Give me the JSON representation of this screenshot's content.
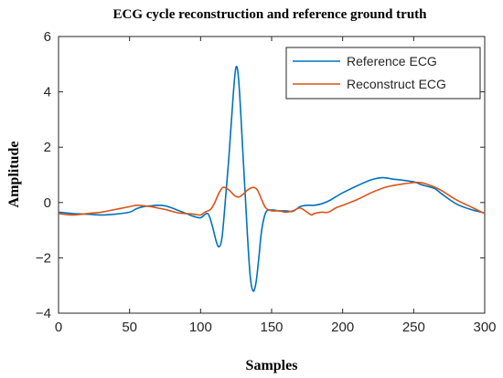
{
  "chart_data": {
    "type": "line",
    "title": "ECG cycle reconstruction and reference ground truth",
    "xlabel": "Samples",
    "ylabel": "Amplitude",
    "xlim": [
      0,
      300
    ],
    "ylim": [
      -4,
      6
    ],
    "xticks": [
      0,
      50,
      100,
      150,
      200,
      250,
      300
    ],
    "yticks": [
      -4,
      -2,
      0,
      2,
      4,
      6
    ],
    "grid": false,
    "legend_position": "top-right",
    "series": [
      {
        "name": "Reference ECG",
        "color": "#0072BD",
        "x": [
          0,
          10,
          20,
          30,
          40,
          50,
          55,
          60,
          65,
          70,
          75,
          80,
          85,
          90,
          95,
          100,
          105,
          108,
          111,
          113,
          115,
          117,
          120,
          123,
          125,
          127,
          130,
          133,
          135,
          137,
          139,
          141,
          143,
          146,
          150,
          155,
          160,
          165,
          170,
          175,
          180,
          185,
          190,
          195,
          200,
          210,
          220,
          228,
          235,
          240,
          250,
          255,
          260,
          265,
          270,
          280,
          290,
          300
        ],
        "y": [
          -0.35,
          -0.4,
          -0.42,
          -0.45,
          -0.42,
          -0.35,
          -0.22,
          -0.15,
          -0.12,
          -0.1,
          -0.12,
          -0.2,
          -0.3,
          -0.4,
          -0.5,
          -0.55,
          -0.4,
          -0.8,
          -1.4,
          -1.6,
          -1.3,
          -0.2,
          1.7,
          3.9,
          4.9,
          4.3,
          1.6,
          -1.2,
          -2.7,
          -3.2,
          -2.9,
          -2.0,
          -1.0,
          -0.35,
          -0.27,
          -0.3,
          -0.3,
          -0.32,
          -0.15,
          -0.1,
          -0.1,
          -0.05,
          0.05,
          0.2,
          0.35,
          0.6,
          0.82,
          0.9,
          0.85,
          0.82,
          0.75,
          0.65,
          0.58,
          0.5,
          0.3,
          -0.05,
          -0.25,
          -0.38
        ]
      },
      {
        "name": "Reconstruct ECG",
        "color": "#D95319",
        "x": [
          0,
          10,
          20,
          30,
          40,
          45,
          50,
          55,
          60,
          65,
          70,
          75,
          80,
          85,
          90,
          95,
          100,
          103,
          107,
          110,
          113,
          116,
          120,
          124,
          127,
          130,
          133,
          137,
          140,
          143,
          146,
          150,
          155,
          160,
          165,
          170,
          175,
          178,
          180,
          185,
          190,
          195,
          200,
          210,
          220,
          230,
          240,
          250,
          255,
          260,
          265,
          270,
          280,
          290,
          300
        ],
        "y": [
          -0.4,
          -0.45,
          -0.4,
          -0.35,
          -0.25,
          -0.2,
          -0.15,
          -0.1,
          -0.12,
          -0.15,
          -0.2,
          -0.25,
          -0.32,
          -0.38,
          -0.4,
          -0.42,
          -0.45,
          -0.35,
          -0.25,
          0.0,
          0.35,
          0.55,
          0.45,
          0.25,
          0.2,
          0.3,
          0.45,
          0.55,
          0.45,
          0.1,
          -0.2,
          -0.3,
          -0.3,
          -0.35,
          -0.3,
          -0.2,
          -0.35,
          -0.45,
          -0.4,
          -0.35,
          -0.35,
          -0.2,
          -0.1,
          0.1,
          0.35,
          0.55,
          0.65,
          0.72,
          0.72,
          0.65,
          0.55,
          0.42,
          0.1,
          -0.15,
          -0.4
        ]
      }
    ]
  }
}
